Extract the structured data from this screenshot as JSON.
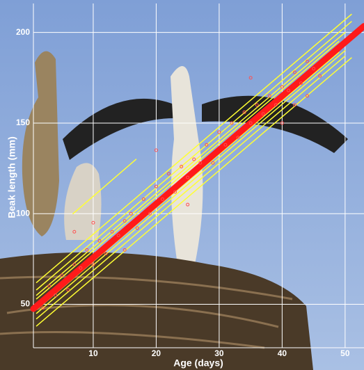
{
  "chart_data": {
    "type": "scatter",
    "xlabel": "Age (days)",
    "ylabel": "Beak length (mm)",
    "xlim": [
      0.5,
      53
    ],
    "ylim": [
      26,
      216
    ],
    "xticks": [
      10,
      20,
      30,
      40,
      50
    ],
    "yticks": [
      50,
      100,
      150,
      200
    ],
    "grid": true,
    "series": [
      {
        "type": "line",
        "color": "#ffff33",
        "width": 1.5,
        "x": [
          1,
          51
        ],
        "values": [
          38,
          186
        ]
      },
      {
        "type": "line",
        "color": "#ffff33",
        "width": 1.5,
        "x": [
          1,
          50
        ],
        "values": [
          42,
          187
        ]
      },
      {
        "type": "line",
        "color": "#ffff33",
        "width": 1.5,
        "x": [
          1,
          50
        ],
        "values": [
          45,
          190
        ]
      },
      {
        "type": "line",
        "color": "#ffff33",
        "width": 1.5,
        "x": [
          1,
          49
        ],
        "values": [
          47,
          189
        ]
      },
      {
        "type": "line",
        "color": "#ffff33",
        "width": 1.5,
        "x": [
          1,
          49
        ],
        "values": [
          53,
          195
        ]
      },
      {
        "type": "line",
        "color": "#ffff33",
        "width": 1.5,
        "x": [
          1,
          50
        ],
        "values": [
          55,
          200
        ]
      },
      {
        "type": "line",
        "color": "#ffff33",
        "width": 1.5,
        "x": [
          1,
          51
        ],
        "values": [
          58,
          206
        ]
      },
      {
        "type": "line",
        "color": "#ffff33",
        "width": 1.5,
        "x": [
          1,
          51
        ],
        "values": [
          62,
          210
        ]
      },
      {
        "type": "line",
        "color": "#ffff33",
        "width": 1.5,
        "x": [
          6.8,
          16.8
        ],
        "values": [
          100,
          130
        ]
      },
      {
        "type": "line",
        "color": "#ff1a1a",
        "width": 9,
        "x": [
          0.5,
          53
        ],
        "values": [
          47.5,
          203.5
        ]
      },
      {
        "type": "scatter",
        "color": "#ff5050",
        "x": [
          2,
          3,
          4,
          5,
          6,
          7,
          8,
          9,
          10,
          11,
          12,
          13,
          14,
          15,
          16,
          17,
          18,
          19,
          20,
          21,
          22,
          23,
          24,
          25,
          26,
          27,
          28,
          29,
          30,
          31,
          32,
          33,
          34,
          35,
          36,
          37,
          38,
          39,
          40,
          41,
          42,
          43,
          44,
          45,
          46,
          20,
          25,
          35,
          40,
          10,
          15,
          7,
          42,
          44
        ],
        "values": [
          48,
          60,
          55,
          66,
          58,
          72,
          70,
          80,
          72,
          85,
          78,
          90,
          88,
          96,
          100,
          92,
          108,
          100,
          115,
          108,
          122,
          112,
          126,
          120,
          130,
          128,
          138,
          128,
          145,
          138,
          150,
          142,
          156,
          150,
          160,
          155,
          165,
          160,
          170,
          168,
          178,
          172,
          184,
          180,
          176,
          135,
          105,
          175,
          150,
          95,
          80,
          90,
          160,
          165
        ]
      }
    ]
  }
}
